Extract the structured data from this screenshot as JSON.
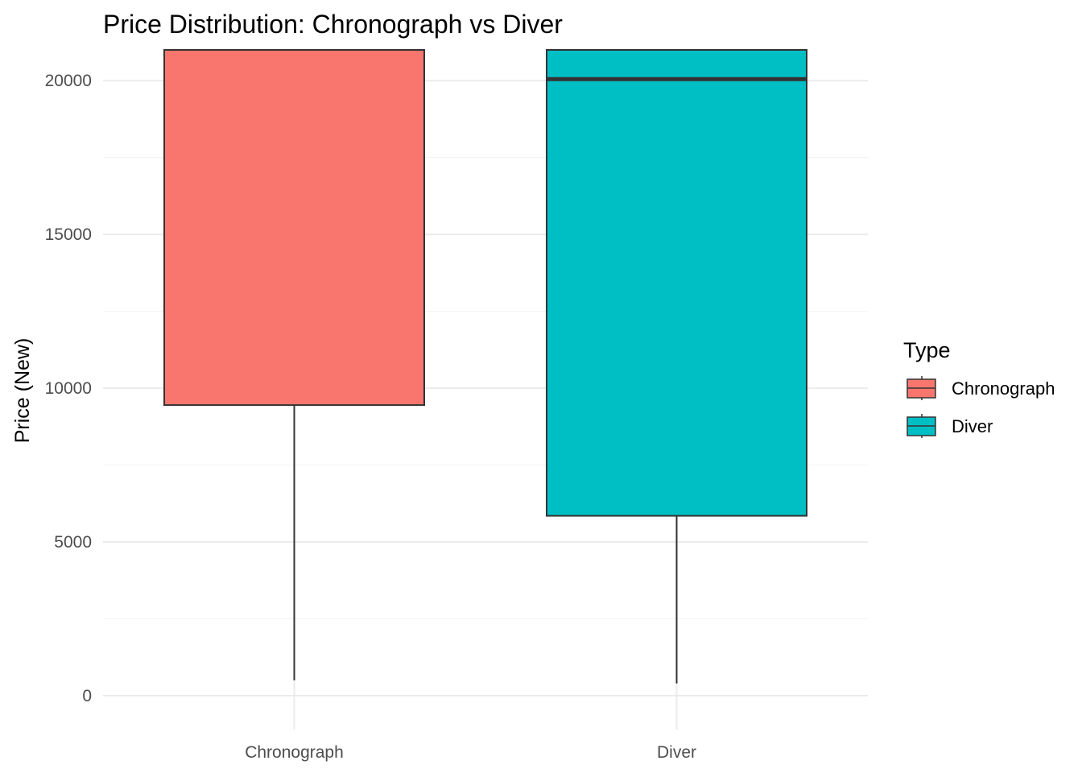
{
  "chart_data": {
    "type": "boxplot",
    "title": "Price Distribution: Chronograph vs Diver",
    "xlabel": "",
    "ylabel": "Price (New)",
    "categories": [
      "Chronograph",
      "Diver"
    ],
    "colors": [
      "#F8766D",
      "#00BFC4"
    ],
    "boxes": [
      {
        "category": "Chronograph",
        "lower_whisker": 500,
        "q1": 9450,
        "median": null,
        "q3": 21000,
        "color": "#F8766D"
      },
      {
        "category": "Diver",
        "lower_whisker": 400,
        "q1": 5850,
        "median": 20050,
        "q3": 21000,
        "color": "#00BFC4"
      }
    ],
    "ylim": [
      -1100,
      21000
    ],
    "y_ticks": [
      0,
      5000,
      10000,
      15000,
      20000
    ],
    "y_minor_ticks": [
      2500,
      7500,
      12500,
      17500
    ],
    "grid": true,
    "legend": {
      "title": "Type",
      "placement": "right",
      "entries": [
        "Chronograph",
        "Diver"
      ]
    }
  }
}
